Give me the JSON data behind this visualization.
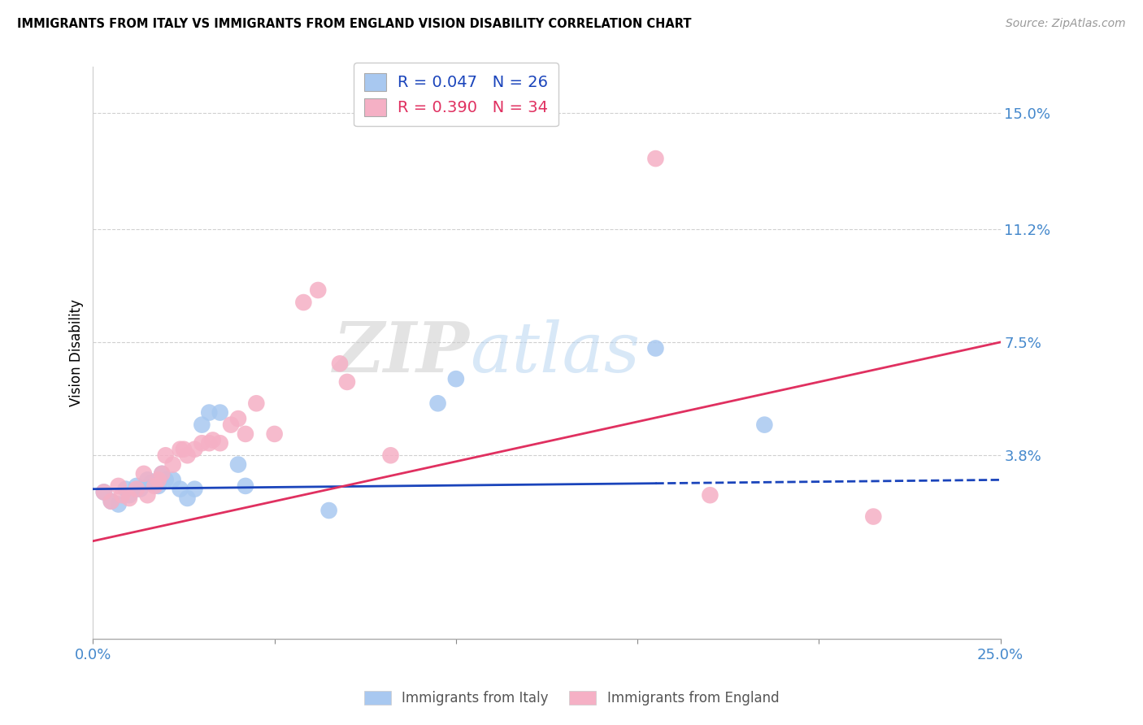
{
  "title": "IMMIGRANTS FROM ITALY VS IMMIGRANTS FROM ENGLAND VISION DISABILITY CORRELATION CHART",
  "source": "Source: ZipAtlas.com",
  "ylabel": "Vision Disability",
  "legend_italy_R": "0.047",
  "legend_italy_N": "26",
  "legend_england_R": "0.390",
  "legend_england_N": "34",
  "watermark_zip": "ZIP",
  "watermark_atlas": "atlas",
  "italy_color": "#a8c8f0",
  "england_color": "#f5b0c5",
  "italy_line_color": "#1a44bb",
  "england_line_color": "#e03060",
  "xlim": [
    0.0,
    0.25
  ],
  "ylim": [
    -0.022,
    0.165
  ],
  "ytick_values": [
    0.038,
    0.075,
    0.112,
    0.15
  ],
  "ytick_labels": [
    "3.8%",
    "7.5%",
    "11.2%",
    "15.0%"
  ],
  "italy_line_x0": 0.0,
  "italy_line_y0": 0.027,
  "italy_line_x1": 0.25,
  "italy_line_y1": 0.03,
  "italy_line_solid_end": 0.155,
  "england_line_x0": 0.0,
  "england_line_y0": 0.01,
  "england_line_x1": 0.25,
  "england_line_y1": 0.075,
  "italy_x": [
    0.003,
    0.005,
    0.007,
    0.009,
    0.01,
    0.012,
    0.013,
    0.015,
    0.016,
    0.018,
    0.019,
    0.02,
    0.022,
    0.024,
    0.026,
    0.028,
    0.03,
    0.032,
    0.035,
    0.04,
    0.042,
    0.065,
    0.095,
    0.1,
    0.155,
    0.185
  ],
  "italy_y": [
    0.026,
    0.023,
    0.022,
    0.027,
    0.025,
    0.028,
    0.027,
    0.03,
    0.029,
    0.028,
    0.032,
    0.03,
    0.03,
    0.027,
    0.024,
    0.027,
    0.048,
    0.052,
    0.052,
    0.035,
    0.028,
    0.02,
    0.055,
    0.063,
    0.073,
    0.048
  ],
  "england_x": [
    0.003,
    0.005,
    0.007,
    0.008,
    0.01,
    0.012,
    0.014,
    0.015,
    0.017,
    0.018,
    0.019,
    0.02,
    0.022,
    0.024,
    0.025,
    0.026,
    0.028,
    0.03,
    0.032,
    0.033,
    0.035,
    0.038,
    0.04,
    0.042,
    0.045,
    0.05,
    0.058,
    0.062,
    0.068,
    0.07,
    0.082,
    0.155,
    0.17,
    0.215
  ],
  "england_y": [
    0.026,
    0.023,
    0.028,
    0.025,
    0.024,
    0.027,
    0.032,
    0.025,
    0.028,
    0.03,
    0.032,
    0.038,
    0.035,
    0.04,
    0.04,
    0.038,
    0.04,
    0.042,
    0.042,
    0.043,
    0.042,
    0.048,
    0.05,
    0.045,
    0.055,
    0.045,
    0.088,
    0.092,
    0.068,
    0.062,
    0.038,
    0.135,
    0.025,
    0.018
  ]
}
